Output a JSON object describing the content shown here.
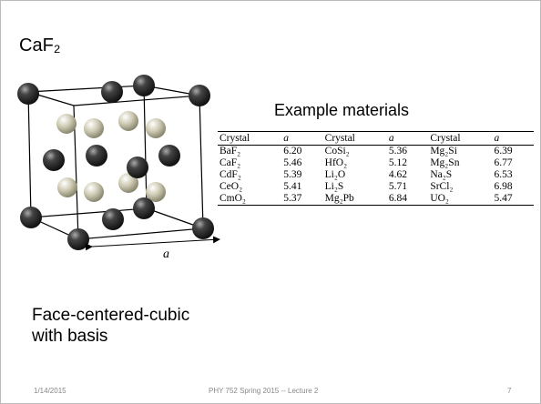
{
  "title": "CaF₂",
  "figure": {
    "label": "a"
  },
  "table": {
    "caption": "Example materials",
    "header": [
      "Crystal",
      "a",
      "Crystal",
      "a",
      "Crystal",
      "a"
    ],
    "rows": [
      [
        "BaF₂",
        "6.20",
        "CoSi₂",
        "5.36",
        "Mg₂Si",
        "6.39"
      ],
      [
        "CaF₂",
        "5.46",
        "HfO₂",
        "5.12",
        "Mg₂Sn",
        "6.77"
      ],
      [
        "CdF₂",
        "5.39",
        "Li₂O",
        "4.62",
        "Na₂S",
        "6.53"
      ],
      [
        "CeO₂",
        "5.41",
        "Li₂S",
        "5.71",
        "SrCl₂",
        "6.98"
      ],
      [
        "CmO₂",
        "5.37",
        "Mg₂Pb",
        "6.84",
        "UO₂",
        "5.47"
      ]
    ]
  },
  "note": [
    "Face-centered-cubic",
    "with basis"
  ],
  "footer": {
    "date": "1/14/2015",
    "center": "PHY 752  Spring 2015 -- Lecture 2",
    "page": "7"
  }
}
